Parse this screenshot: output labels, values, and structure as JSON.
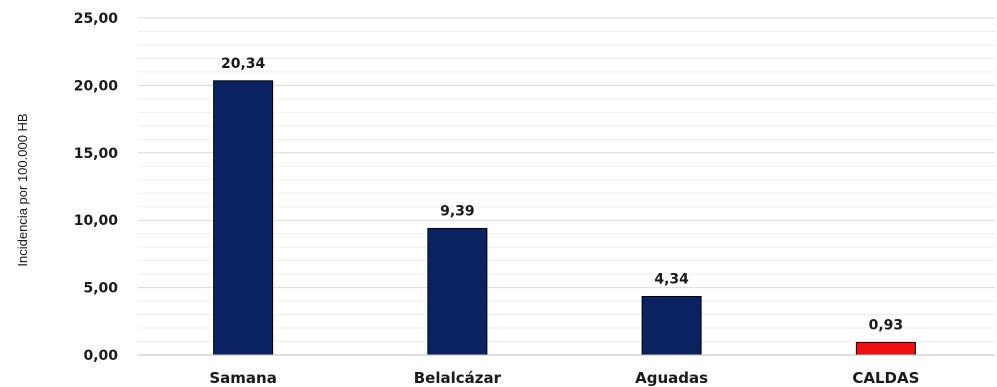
{
  "chart_data": {
    "type": "bar",
    "title": "",
    "xlabel": "",
    "ylabel": "Incidencia por 100.000 HB",
    "categories": [
      "Samana",
      "Belalcázar",
      "Aguadas",
      "CALDAS"
    ],
    "values": [
      20.34,
      9.39,
      4.34,
      0.93
    ],
    "data_labels": [
      "20,34",
      "9,39",
      "4,34",
      "0,93"
    ],
    "y_ticks": [
      {
        "value": 0,
        "label": "0,00"
      },
      {
        "value": 5,
        "label": "5,00"
      },
      {
        "value": 10,
        "label": "10,00"
      },
      {
        "value": 15,
        "label": "15,00"
      },
      {
        "value": 20,
        "label": "20,00"
      },
      {
        "value": 25,
        "label": "25,00"
      }
    ],
    "ylim": [
      0,
      25
    ],
    "minor_grid_step": 1,
    "grid": true,
    "legend": "none",
    "bar_colors": [
      "#0b2260",
      "#0b2260",
      "#0b2260",
      "#ee1111"
    ],
    "bar_border_color": "#000000"
  }
}
